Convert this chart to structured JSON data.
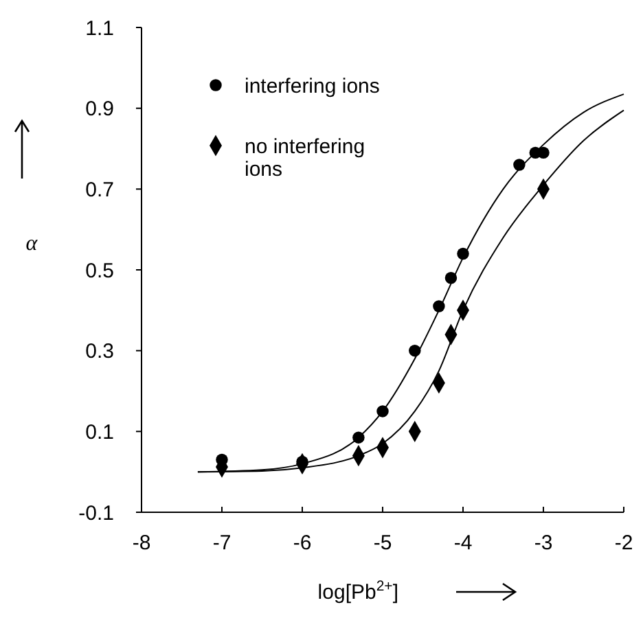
{
  "chart_data": {
    "type": "scatter",
    "xlabel": "log[Pb$^{2+}$]",
    "ylabel": "α",
    "xlim": [
      -8,
      -2
    ],
    "xticks": [
      -8,
      -7,
      -6,
      -5,
      -4,
      -3,
      -2
    ],
    "ylim": [
      -0.1,
      1.1
    ],
    "yticks": [
      -0.1,
      0.1,
      0.3,
      0.5,
      0.7,
      0.9,
      1.1
    ],
    "grid": false,
    "legend": "top left",
    "series": [
      {
        "name": "interfering ions",
        "marker": "circle",
        "color": "#000000",
        "x": [
          -7,
          -6,
          -5.3,
          -5,
          -4.6,
          -4.3,
          -4.15,
          -4,
          -3.3,
          -3.1,
          -3
        ],
        "values": [
          0.03,
          0.025,
          0.085,
          0.15,
          0.3,
          0.41,
          0.48,
          0.54,
          0.76,
          0.79,
          0.79
        ]
      },
      {
        "name": "no interfering ions",
        "marker": "diamond",
        "color": "#000000",
        "x": [
          -7,
          -6,
          -5.3,
          -5,
          -4.6,
          -4.3,
          -4.15,
          -4,
          -3
        ],
        "values": [
          0.012,
          0.02,
          0.04,
          0.06,
          0.1,
          0.22,
          0.34,
          0.4,
          0.7
        ]
      },
      {
        "type": "line",
        "marker": "none",
        "line_style": "solid",
        "color": "#000000",
        "x": [
          -7.3,
          -6.5,
          -6,
          -5.3,
          -5,
          -4.6,
          -4.3,
          -4,
          -3.5,
          -3,
          -2.5,
          -2
        ],
        "values": [
          0,
          0.005,
          0.02,
          0.085,
          0.15,
          0.28,
          0.4,
          0.53,
          0.7,
          0.81,
          0.89,
          0.935
        ]
      },
      {
        "type": "line",
        "marker": "none",
        "line_style": "solid",
        "color": "#000000",
        "x": [
          -7.3,
          -6.5,
          -6,
          -5.3,
          -5,
          -4.6,
          -4.3,
          -4,
          -3.5,
          -3,
          -2.5,
          -2
        ],
        "values": [
          0,
          0.002,
          0.01,
          0.04,
          0.07,
          0.15,
          0.25,
          0.4,
          0.58,
          0.71,
          0.82,
          0.895
        ]
      }
    ]
  }
}
